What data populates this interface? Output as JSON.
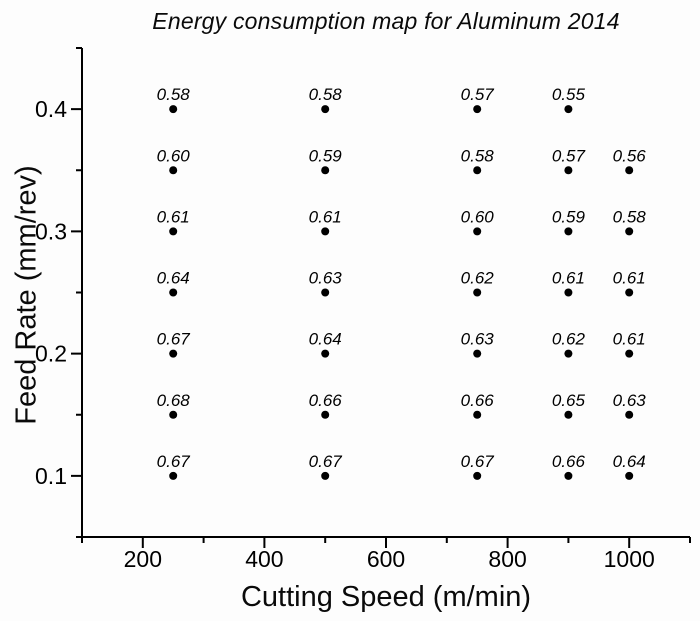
{
  "colors": {
    "foreground": "#000000",
    "background": "#fdfdfd"
  },
  "chart_data": {
    "type": "scatter",
    "title": "Energy consumption map for Aluminum 2014",
    "xlabel": "Cutting Speed (m/min)",
    "ylabel": "Feed Rate (mm/rev)",
    "xlim": [
      100,
      1100
    ],
    "ylim": [
      0.05,
      0.45
    ],
    "grid": false,
    "legend_position": "none",
    "x_major_ticks": [
      {
        "value": 200,
        "label": "200"
      },
      {
        "value": 400,
        "label": "400"
      },
      {
        "value": 600,
        "label": "600"
      },
      {
        "value": 800,
        "label": "800"
      },
      {
        "value": 1000,
        "label": "1000"
      }
    ],
    "x_minor_ticks": [
      100,
      300,
      500,
      700,
      900,
      1100
    ],
    "y_major_ticks": [
      {
        "value": 0.1,
        "label": "0.1"
      },
      {
        "value": 0.2,
        "label": "0.2"
      },
      {
        "value": 0.3,
        "label": "0.3"
      },
      {
        "value": 0.4,
        "label": "0.4"
      }
    ],
    "y_minor_ticks": [
      0.05,
      0.15,
      0.25,
      0.35,
      0.45
    ],
    "marker": "filled-circle",
    "marker_color": "#000000",
    "points": [
      {
        "x": 250,
        "y": 0.4,
        "label": "0.58"
      },
      {
        "x": 500,
        "y": 0.4,
        "label": "0.58"
      },
      {
        "x": 750,
        "y": 0.4,
        "label": "0.57"
      },
      {
        "x": 900,
        "y": 0.4,
        "label": "0.55"
      },
      {
        "x": 250,
        "y": 0.35,
        "label": "0.60"
      },
      {
        "x": 500,
        "y": 0.35,
        "label": "0.59"
      },
      {
        "x": 750,
        "y": 0.35,
        "label": "0.58"
      },
      {
        "x": 900,
        "y": 0.35,
        "label": "0.57"
      },
      {
        "x": 1000,
        "y": 0.35,
        "label": "0.56"
      },
      {
        "x": 250,
        "y": 0.3,
        "label": "0.61"
      },
      {
        "x": 500,
        "y": 0.3,
        "label": "0.61"
      },
      {
        "x": 750,
        "y": 0.3,
        "label": "0.60"
      },
      {
        "x": 900,
        "y": 0.3,
        "label": "0.59"
      },
      {
        "x": 1000,
        "y": 0.3,
        "label": "0.58"
      },
      {
        "x": 250,
        "y": 0.25,
        "label": "0.64"
      },
      {
        "x": 500,
        "y": 0.25,
        "label": "0.63"
      },
      {
        "x": 750,
        "y": 0.25,
        "label": "0.62"
      },
      {
        "x": 900,
        "y": 0.25,
        "label": "0.61"
      },
      {
        "x": 1000,
        "y": 0.25,
        "label": "0.61"
      },
      {
        "x": 250,
        "y": 0.2,
        "label": "0.67"
      },
      {
        "x": 500,
        "y": 0.2,
        "label": "0.64"
      },
      {
        "x": 750,
        "y": 0.2,
        "label": "0.63"
      },
      {
        "x": 900,
        "y": 0.2,
        "label": "0.62"
      },
      {
        "x": 1000,
        "y": 0.2,
        "label": "0.61"
      },
      {
        "x": 250,
        "y": 0.15,
        "label": "0.68"
      },
      {
        "x": 500,
        "y": 0.15,
        "label": "0.66"
      },
      {
        "x": 750,
        "y": 0.15,
        "label": "0.66"
      },
      {
        "x": 900,
        "y": 0.15,
        "label": "0.65"
      },
      {
        "x": 1000,
        "y": 0.15,
        "label": "0.63"
      },
      {
        "x": 250,
        "y": 0.1,
        "label": "0.67"
      },
      {
        "x": 500,
        "y": 0.1,
        "label": "0.67"
      },
      {
        "x": 750,
        "y": 0.1,
        "label": "0.67"
      },
      {
        "x": 900,
        "y": 0.1,
        "label": "0.66"
      },
      {
        "x": 1000,
        "y": 0.1,
        "label": "0.64"
      }
    ]
  }
}
